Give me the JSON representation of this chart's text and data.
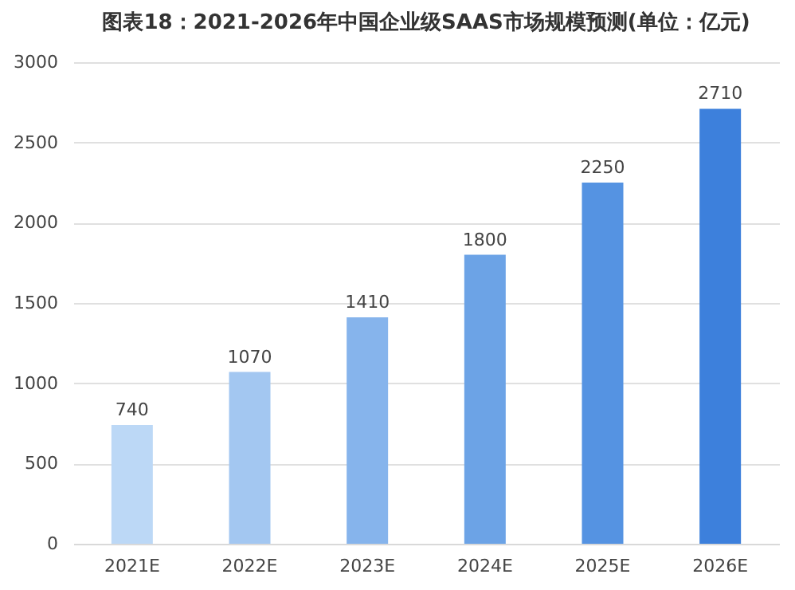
{
  "chart_data": {
    "type": "bar",
    "title": "图表18：2021-2026年中国企业级SAAS市场规模预测(单位：亿元)",
    "categories": [
      "2021E",
      "2022E",
      "2023E",
      "2024E",
      "2025E",
      "2026E"
    ],
    "values": [
      740,
      1070,
      1410,
      1800,
      2250,
      2710
    ],
    "colors": [
      "#bcd8f6",
      "#a3c7f1",
      "#86b4ec",
      "#6ca3e6",
      "#5593e2",
      "#3d80dc"
    ],
    "ylim": [
      0,
      3000
    ],
    "yticks": [
      0,
      500,
      1000,
      1500,
      2000,
      2500,
      3000
    ],
    "grid": "y",
    "data_labels": true
  }
}
